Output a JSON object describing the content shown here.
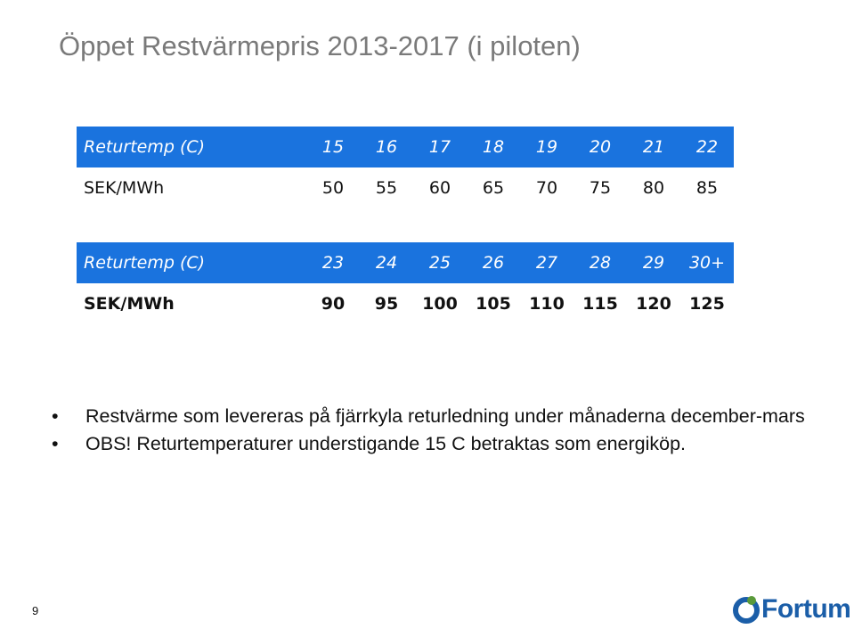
{
  "slide": {
    "title": "Öppet Restvärmepris 2013-2017 (i piloten)",
    "page_number": "9",
    "logo_text": "Fortum"
  },
  "table1": {
    "header_label": "Returtemp (C)",
    "header_values": [
      "15",
      "16",
      "17",
      "18",
      "19",
      "20",
      "21",
      "22"
    ],
    "value_label": "SEK/MWh",
    "values": [
      "50",
      "55",
      "60",
      "65",
      "70",
      "75",
      "80",
      "85"
    ]
  },
  "table2": {
    "header_label": "Returtemp (C)",
    "header_values": [
      "23",
      "24",
      "25",
      "26",
      "27",
      "28",
      "29",
      "30+"
    ],
    "value_label": "SEK/MWh",
    "values": [
      "90",
      "95",
      "100",
      "105",
      "110",
      "115",
      "120",
      "125"
    ]
  },
  "bullets": [
    "Restvärme som levereras på fjärrkyla returledning under månaderna december-mars",
    "OBS! Returtemperaturer understigande 15 C betraktas som energiköp."
  ],
  "colors": {
    "header_fill": "#1a73de",
    "title_text": "#7a7a7a",
    "logo_blue": "#1b5ea8",
    "logo_green": "#5a9a3a"
  },
  "icons": {
    "bullet": "bullet-dot-icon",
    "logo": "fortum-logo-icon"
  }
}
